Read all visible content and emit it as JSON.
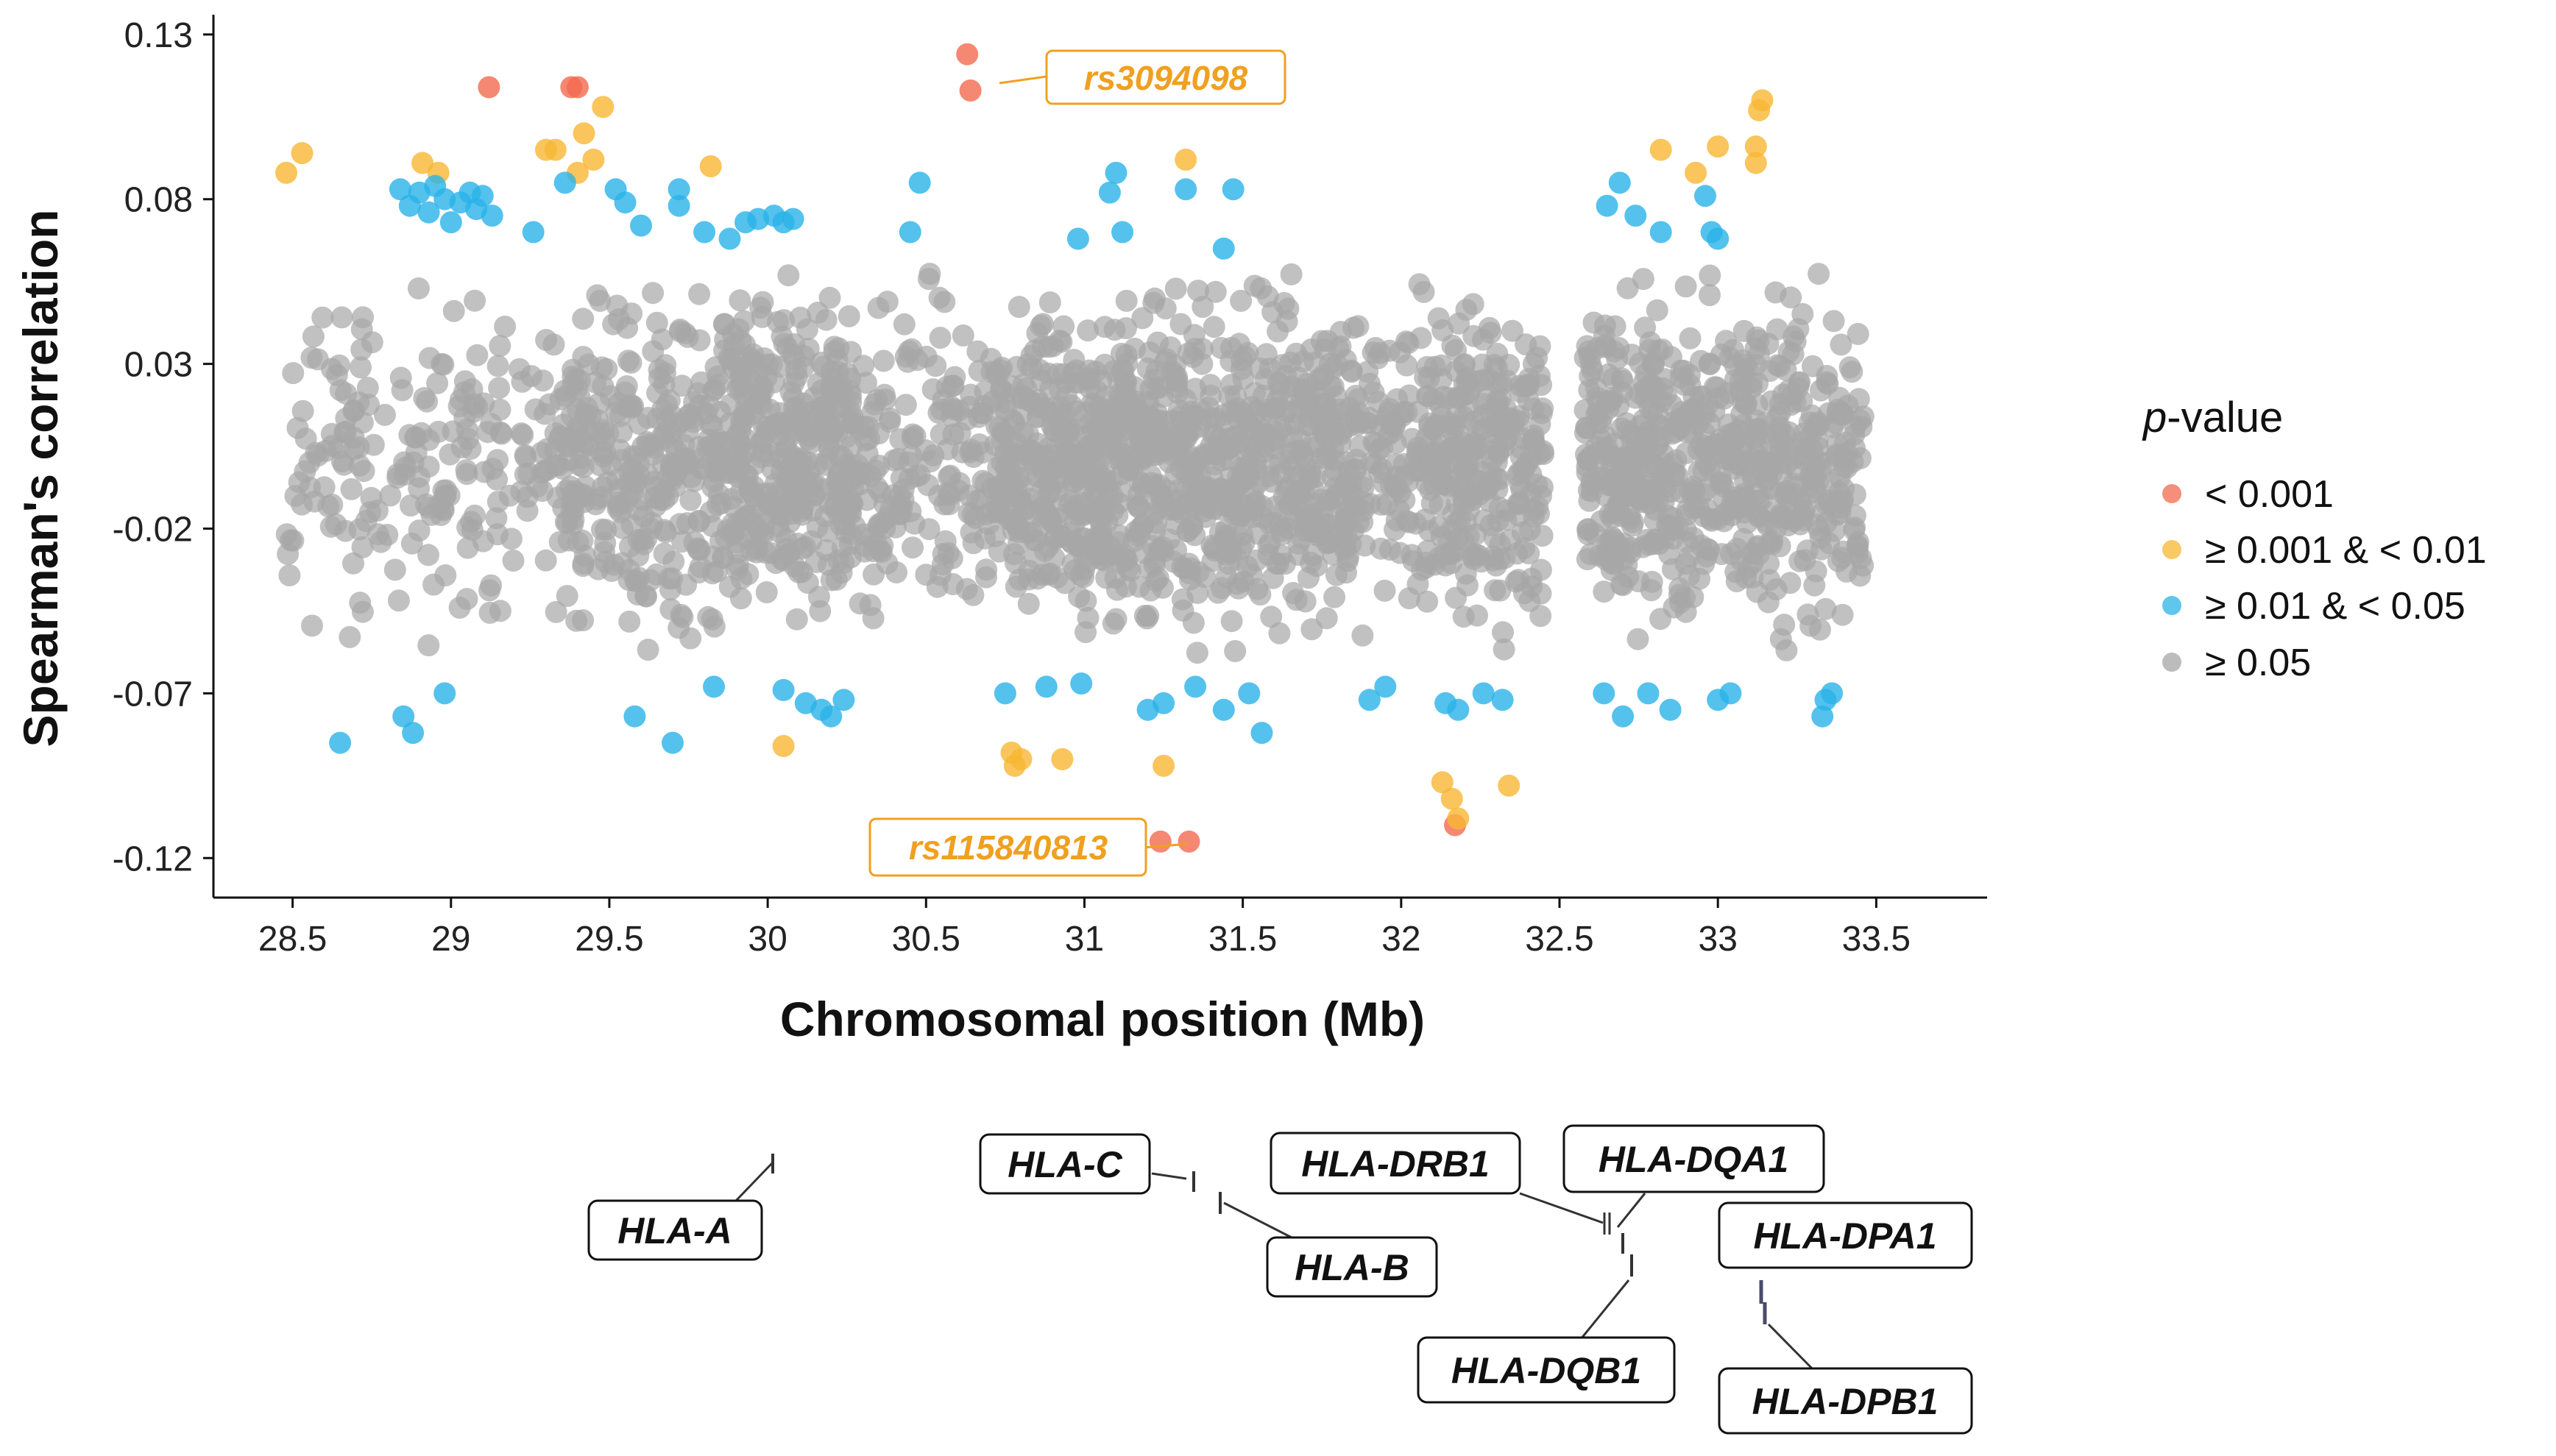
{
  "chart_data": {
    "type": "scatter",
    "title": "",
    "xlabel": "Chromosomal position (Mb)",
    "ylabel": "Spearman's correlation",
    "xlim": [
      28.25,
      33.85
    ],
    "ylim": [
      -0.132,
      0.136
    ],
    "xticks": [
      "28.5",
      "29",
      "29.5",
      "30",
      "30.5",
      "31",
      "31.5",
      "32",
      "32.5",
      "33",
      "33.5"
    ],
    "yticks": [
      "0.13",
      "0.08",
      "0.03",
      "-0.02",
      "-0.07",
      "-0.12"
    ],
    "legend": {
      "title_italic": "p",
      "title_rest": "-value",
      "placement": "right",
      "entries": [
        {
          "label": "< 0.001",
          "color": "#f26a4f"
        },
        {
          "label": "≥ 0.001 & < 0.01",
          "color": "#f7b733"
        },
        {
          "label": "≥ 0.01 & < 0.05",
          "color": "#29b3e8"
        },
        {
          "label": "≥ 0.05",
          "color": "#a6a6a6"
        }
      ]
    },
    "series": [
      {
        "name": "< 0.001",
        "color": "#f26a4f",
        "points": [
          [
            29.12,
            0.114
          ],
          [
            29.38,
            0.114
          ],
          [
            29.4,
            0.114
          ],
          [
            30.63,
            0.124
          ],
          [
            30.64,
            0.113
          ],
          [
            31.24,
            -0.115
          ],
          [
            31.33,
            -0.115
          ],
          [
            32.17,
            -0.11
          ]
        ]
      },
      {
        "name": "≥ 0.001 & < 0.01",
        "color": "#f7b733",
        "points": [
          [
            28.48,
            0.088
          ],
          [
            28.53,
            0.094
          ],
          [
            28.91,
            0.091
          ],
          [
            28.96,
            0.088
          ],
          [
            29.3,
            0.095
          ],
          [
            29.33,
            0.095
          ],
          [
            29.42,
            0.1
          ],
          [
            29.4,
            0.088
          ],
          [
            29.45,
            0.092
          ],
          [
            29.48,
            0.108
          ],
          [
            29.82,
            0.09
          ],
          [
            30.05,
            -0.086
          ],
          [
            30.77,
            -0.088
          ],
          [
            30.78,
            -0.092
          ],
          [
            30.8,
            -0.09
          ],
          [
            30.93,
            -0.09
          ],
          [
            31.25,
            -0.092
          ],
          [
            31.32,
            0.092
          ],
          [
            32.13,
            -0.097
          ],
          [
            32.16,
            -0.102
          ],
          [
            32.18,
            -0.108
          ],
          [
            32.34,
            -0.098
          ],
          [
            32.82,
            0.095
          ],
          [
            32.93,
            0.088
          ],
          [
            33.0,
            0.096
          ],
          [
            33.12,
            0.091
          ],
          [
            33.12,
            0.096
          ],
          [
            33.14,
            0.11
          ],
          [
            33.13,
            0.107
          ]
        ]
      },
      {
        "name": "≥ 0.01 & < 0.05",
        "color": "#29b3e8",
        "points": [
          [
            28.84,
            0.083
          ],
          [
            28.87,
            0.078
          ],
          [
            28.9,
            0.082
          ],
          [
            28.93,
            0.076
          ],
          [
            28.95,
            0.084
          ],
          [
            28.98,
            0.08
          ],
          [
            29.0,
            0.073
          ],
          [
            29.03,
            0.079
          ],
          [
            29.06,
            0.082
          ],
          [
            29.08,
            0.077
          ],
          [
            29.1,
            0.081
          ],
          [
            29.13,
            0.075
          ],
          [
            29.26,
            0.07
          ],
          [
            29.36,
            0.085
          ],
          [
            29.52,
            0.083
          ],
          [
            29.55,
            0.079
          ],
          [
            29.6,
            0.072
          ],
          [
            29.72,
            0.078
          ],
          [
            29.72,
            0.083
          ],
          [
            29.8,
            0.07
          ],
          [
            29.88,
            0.068
          ],
          [
            29.93,
            0.073
          ],
          [
            29.97,
            0.074
          ],
          [
            30.02,
            0.075
          ],
          [
            30.05,
            0.073
          ],
          [
            30.08,
            0.074
          ],
          [
            30.48,
            0.085
          ],
          [
            30.45,
            0.07
          ],
          [
            30.98,
            0.068
          ],
          [
            31.08,
            0.082
          ],
          [
            31.1,
            0.088
          ],
          [
            31.12,
            0.07
          ],
          [
            31.32,
            0.083
          ],
          [
            31.47,
            0.083
          ],
          [
            31.44,
            0.065
          ],
          [
            32.65,
            0.078
          ],
          [
            32.69,
            0.085
          ],
          [
            32.74,
            0.075
          ],
          [
            32.82,
            0.07
          ],
          [
            32.96,
            0.081
          ],
          [
            32.98,
            0.07
          ],
          [
            33.0,
            0.068
          ],
          [
            28.65,
            -0.085
          ],
          [
            28.85,
            -0.077
          ],
          [
            28.88,
            -0.082
          ],
          [
            28.98,
            -0.07
          ],
          [
            29.58,
            -0.077
          ],
          [
            29.7,
            -0.085
          ],
          [
            29.83,
            -0.068
          ],
          [
            30.05,
            -0.069
          ],
          [
            30.12,
            -0.073
          ],
          [
            30.17,
            -0.075
          ],
          [
            30.2,
            -0.077
          ],
          [
            30.24,
            -0.072
          ],
          [
            30.75,
            -0.07
          ],
          [
            30.88,
            -0.068
          ],
          [
            30.99,
            -0.067
          ],
          [
            31.2,
            -0.075
          ],
          [
            31.25,
            -0.073
          ],
          [
            31.35,
            -0.068
          ],
          [
            31.44,
            -0.075
          ],
          [
            31.52,
            -0.07
          ],
          [
            31.56,
            -0.082
          ],
          [
            31.9,
            -0.072
          ],
          [
            31.95,
            -0.068
          ],
          [
            32.14,
            -0.073
          ],
          [
            32.18,
            -0.075
          ],
          [
            32.26,
            -0.07
          ],
          [
            32.32,
            -0.072
          ],
          [
            32.64,
            -0.07
          ],
          [
            32.7,
            -0.077
          ],
          [
            32.78,
            -0.07
          ],
          [
            32.85,
            -0.075
          ],
          [
            33.0,
            -0.072
          ],
          [
            33.04,
            -0.07
          ],
          [
            33.34,
            -0.072
          ],
          [
            33.36,
            -0.07
          ],
          [
            33.33,
            -0.077
          ]
        ]
      },
      {
        "name": "≥ 0.05",
        "color": "#a6a6a6",
        "generated": true,
        "y_range": [
          -0.066,
          0.066
        ],
        "clusters": [
          [
            28.48,
            29.32,
            200
          ],
          [
            29.32,
            29.88,
            320
          ],
          [
            29.88,
            30.28,
            340
          ],
          [
            30.28,
            30.72,
            170
          ],
          [
            30.72,
            31.05,
            280
          ],
          [
            31.05,
            31.55,
            430
          ],
          [
            31.55,
            31.85,
            230
          ],
          [
            31.85,
            32.08,
            110
          ],
          [
            32.08,
            32.45,
            280
          ],
          [
            32.58,
            32.95,
            300
          ],
          [
            32.95,
            33.46,
            340
          ]
        ]
      }
    ],
    "annotations": [
      {
        "text": "rs3094098",
        "x": 30.63,
        "y": 0.124
      },
      {
        "text": "rs115840813",
        "x": 31.24,
        "y": -0.115
      }
    ],
    "genes": [
      {
        "name": "HLA-A"
      },
      {
        "name": "HLA-C"
      },
      {
        "name": "HLA-B"
      },
      {
        "name": "HLA-DRB1"
      },
      {
        "name": "HLA-DQA1"
      },
      {
        "name": "HLA-DQB1"
      },
      {
        "name": "HLA-DPA1"
      },
      {
        "name": "HLA-DPB1"
      }
    ]
  }
}
